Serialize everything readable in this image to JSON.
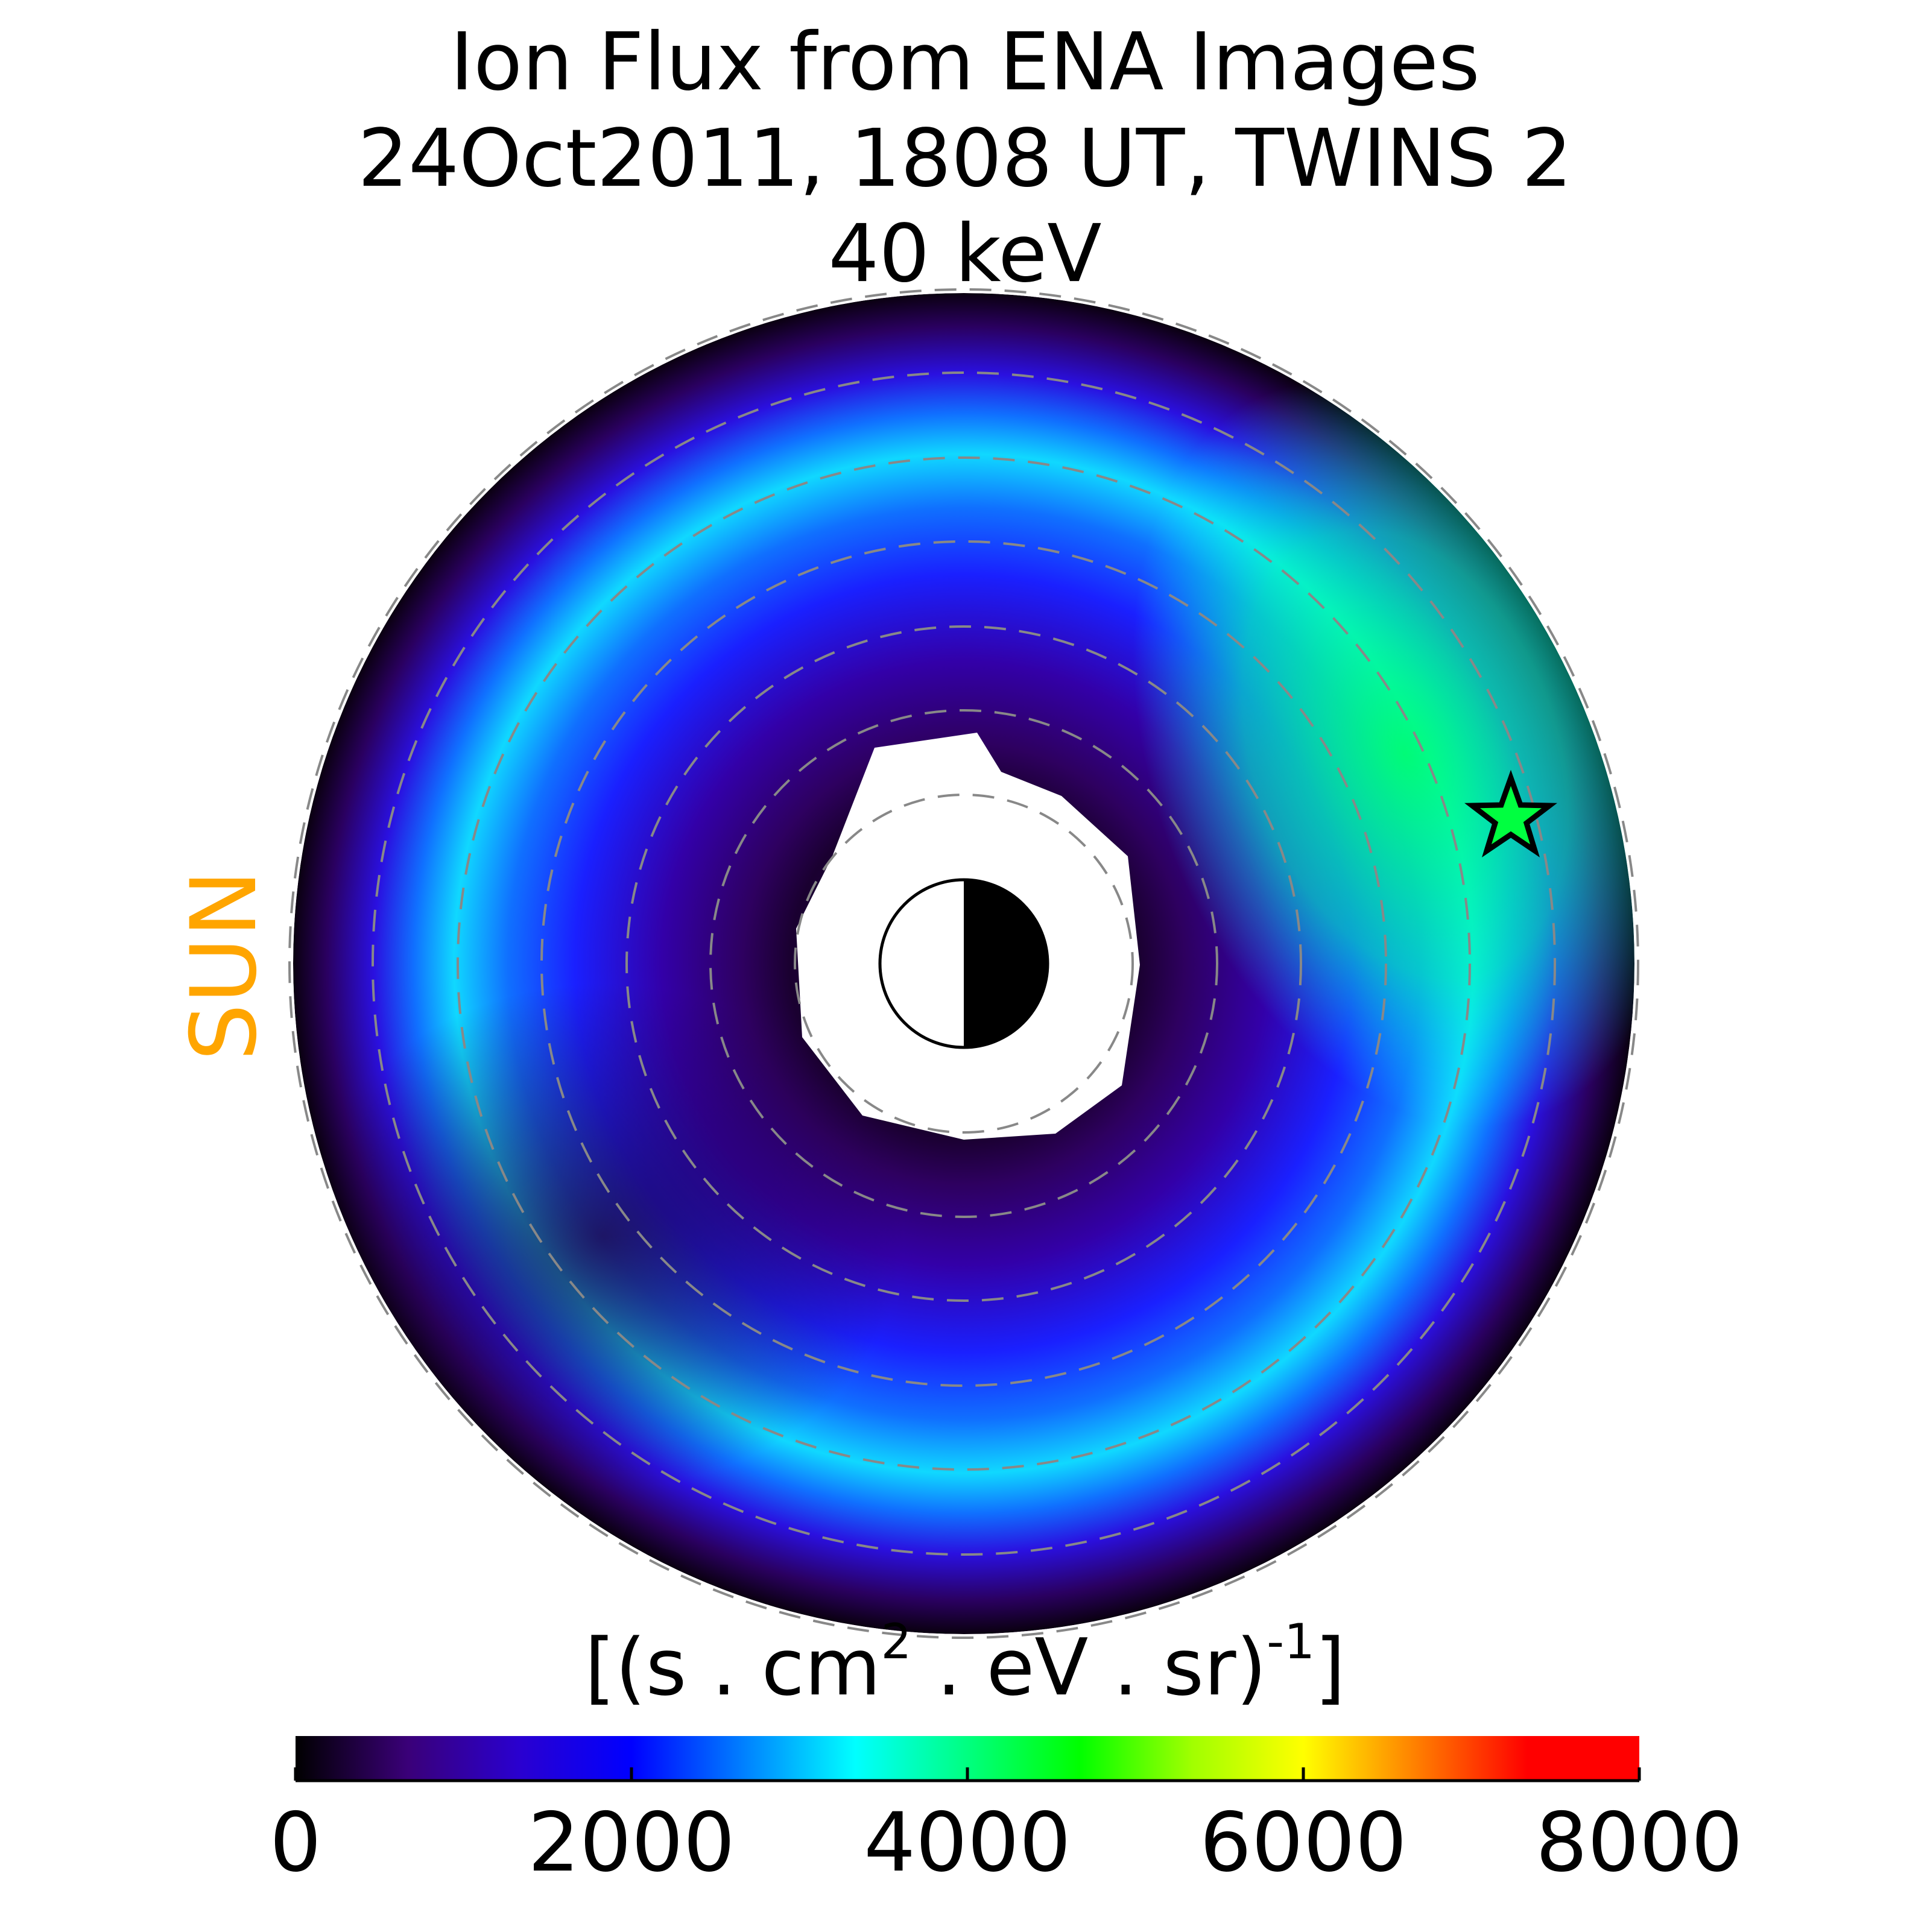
{
  "chart_data": {
    "type": "polar_flux_map",
    "title": [
      "Ion Flux from  ENA Images",
      "24Oct2011, 1808 UT,  TWINS 2",
      "40 keV"
    ],
    "side_label": "SUN",
    "side_label_color": "#ffa500",
    "colorbar_label": [
      "[(s . cm",
      "2",
      " . eV . sr)",
      "-1",
      "]"
    ],
    "clim": [
      0,
      8000
    ],
    "cticks": [
      0,
      2000,
      4000,
      6000,
      8000
    ],
    "colormap": [
      "#000000",
      "#3a0078",
      "#2a00d0",
      "#0000ff",
      "#0080ff",
      "#00ffff",
      "#00ff80",
      "#00ff00",
      "#a0ff00",
      "#ffff00",
      "#ff8000",
      "#ff0000",
      "#ff0000"
    ]
  }
}
